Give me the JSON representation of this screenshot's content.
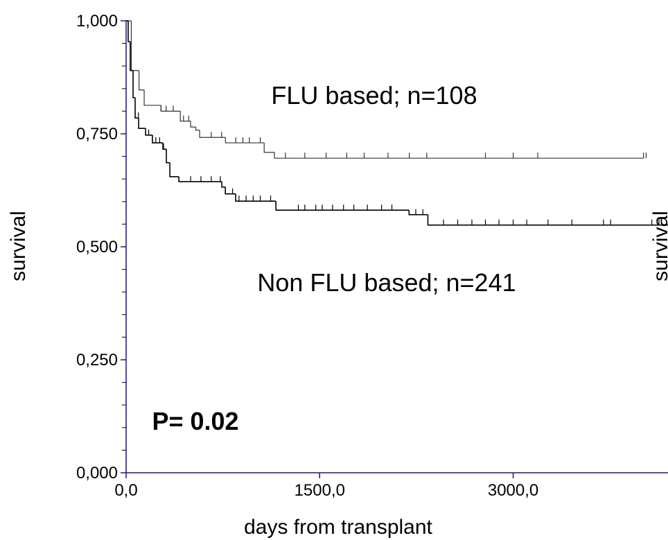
{
  "chart_data": {
    "type": "step",
    "xlabel": "days from transplant",
    "ylabel": "survival",
    "ylabel_right": "survival",
    "annotations": [
      "FLU based; n=108",
      "Non FLU based; n=241",
      "P= 0.02"
    ],
    "xlim": [
      0,
      4200
    ],
    "ylim": [
      0,
      1
    ],
    "xticks": [
      {
        "value": 0,
        "label": "0,0"
      },
      {
        "value": 1500,
        "label": "1500,0"
      },
      {
        "value": 3000,
        "label": "3000,0"
      }
    ],
    "yticks": [
      {
        "value": 0,
        "label": "0,000"
      },
      {
        "value": 0.25,
        "label": "0,250"
      },
      {
        "value": 0.5,
        "label": "0,500"
      },
      {
        "value": 0.75,
        "label": "0,750"
      },
      {
        "value": 1,
        "label": "1,000"
      }
    ],
    "yminorticks": [
      0.05,
      0.1,
      0.15,
      0.2,
      0.3,
      0.35,
      0.4,
      0.45,
      0.55,
      0.6,
      0.65,
      0.7,
      0.8,
      0.85,
      0.9,
      0.95
    ],
    "axis_color": "#1a1a6e",
    "series": [
      {
        "name": "FLU based",
        "color": "#333333",
        "x": [
          0,
          40,
          100,
          140,
          270,
          420,
          500,
          540,
          570,
          770,
          1070,
          1150,
          4010
        ],
        "values": [
          1.0,
          0.89,
          0.847,
          0.813,
          0.8,
          0.778,
          0.765,
          0.758,
          0.742,
          0.73,
          0.709,
          0.696,
          0.696
        ],
        "censored": [
          270,
          310,
          365,
          445,
          485,
          660,
          740,
          850,
          905,
          955,
          1040,
          1235,
          1385,
          1550,
          1710,
          1845,
          2030,
          2195,
          2330,
          2785,
          3000,
          3190,
          4010,
          4030
        ]
      },
      {
        "name": "Non FLU based",
        "color": "#000000",
        "x": [
          0,
          16,
          32,
          54,
          70,
          97,
          151,
          204,
          285,
          312,
          339,
          409,
          742,
          769,
          849,
          1161,
          2193,
          2339,
          4200
        ],
        "values": [
          1.0,
          0.954,
          0.89,
          0.83,
          0.785,
          0.762,
          0.747,
          0.73,
          0.716,
          0.686,
          0.655,
          0.644,
          0.632,
          0.617,
          0.601,
          0.581,
          0.571,
          0.548,
          0.548
        ],
        "censored": [
          95,
          175,
          230,
          260,
          290,
          500,
          580,
          660,
          730,
          825,
          875,
          930,
          985,
          1040,
          1120,
          1335,
          1385,
          1470,
          1520,
          1600,
          1685,
          1765,
          1870,
          1980,
          2060,
          2245,
          2300,
          2460,
          2570,
          2680,
          2785,
          2890,
          3000,
          3105,
          3270,
          3455,
          3700,
          3755,
          4075,
          4130
        ]
      }
    ]
  }
}
